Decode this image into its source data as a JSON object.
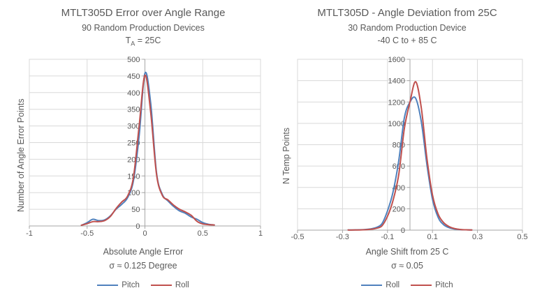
{
  "page": {
    "background": "#ffffff"
  },
  "colors": {
    "text": "#595959",
    "grid": "#d9d9d9",
    "axis": "#a6a6a6",
    "series_blue": "#4f81bd",
    "series_red": "#c0504d"
  },
  "chart_data": [
    {
      "type": "line",
      "title": "MTLT305D Error over Angle Range",
      "subtitle": "90 Random Production Devices",
      "condition": {
        "pre": "T",
        "sub": "A",
        "post": " = 25C"
      },
      "ylabel": "Number of Angle Error Points",
      "xlabel": "Absolute Angle Error",
      "sigma": "σ ≈ 0.125 Degree",
      "xlim": [
        -1,
        1
      ],
      "ylim": [
        0,
        500
      ],
      "ytick_step": 50,
      "xticks": [
        -1,
        -0.5,
        0,
        0.5,
        1
      ],
      "xtick_labels": [
        "-1",
        "-0.5",
        "0",
        "0.5",
        "1"
      ],
      "grid": true,
      "legend_position": "bottom",
      "x": [
        -0.55,
        -0.5,
        -0.45,
        -0.4,
        -0.35,
        -0.3,
        -0.25,
        -0.2,
        -0.15,
        -0.1,
        -0.05,
        0,
        0.05,
        0.1,
        0.15,
        0.2,
        0.25,
        0.3,
        0.35,
        0.4,
        0.45,
        0.5,
        0.55,
        0.6
      ],
      "series": [
        {
          "name": "Pitch",
          "color": "#4f81bd",
          "values": [
            2,
            10,
            20,
            16,
            18,
            30,
            50,
            65,
            85,
            135,
            270,
            458,
            368,
            160,
            95,
            75,
            58,
            45,
            38,
            27,
            20,
            10,
            5,
            3
          ]
        },
        {
          "name": "Roll",
          "color": "#c0504d",
          "values": [
            2,
            7,
            13,
            13,
            16,
            28,
            52,
            72,
            90,
            145,
            300,
            452,
            340,
            155,
            92,
            78,
            62,
            50,
            42,
            32,
            14,
            6,
            4,
            3
          ]
        }
      ]
    },
    {
      "type": "line",
      "title": "MTLT305D - Angle Deviation from 25C",
      "subtitle": "30 Random Production Device",
      "condition": {
        "pre": "-40 C to + 85 C",
        "sub": "",
        "post": ""
      },
      "ylabel": "N Temp Points",
      "xlabel": "Angle Shift from 25 C",
      "sigma": "σ ≈ 0.05",
      "xlim": [
        -0.5,
        0.5
      ],
      "ylim": [
        0,
        1600
      ],
      "ytick_step": 200,
      "xticks": [
        -0.5,
        -0.3,
        -0.1,
        0.1,
        0.3,
        0.5
      ],
      "xtick_labels": [
        "-0.5",
        "-0.3",
        "-0.1",
        "0.1",
        "0.3",
        "0.5"
      ],
      "grid": true,
      "legend_position": "bottom",
      "x": [
        -0.275,
        -0.25,
        -0.225,
        -0.2,
        -0.175,
        -0.15,
        -0.125,
        -0.1,
        -0.075,
        -0.05,
        -0.025,
        0,
        0.025,
        0.05,
        0.075,
        0.1,
        0.125,
        0.15,
        0.175,
        0.2,
        0.225,
        0.25,
        0.275
      ],
      "series": [
        {
          "name": "Roll",
          "color": "#4f81bd",
          "values": [
            1,
            2,
            3,
            6,
            12,
            25,
            60,
            180,
            360,
            650,
            1050,
            1200,
            1235,
            1020,
            620,
            290,
            120,
            50,
            22,
            10,
            5,
            3,
            2
          ]
        },
        {
          "name": "Pitch",
          "color": "#c0504d",
          "values": [
            1,
            1,
            2,
            4,
            8,
            17,
            40,
            130,
            280,
            520,
            950,
            1200,
            1390,
            1150,
            680,
            330,
            150,
            70,
            32,
            14,
            6,
            3,
            2
          ]
        }
      ]
    }
  ]
}
